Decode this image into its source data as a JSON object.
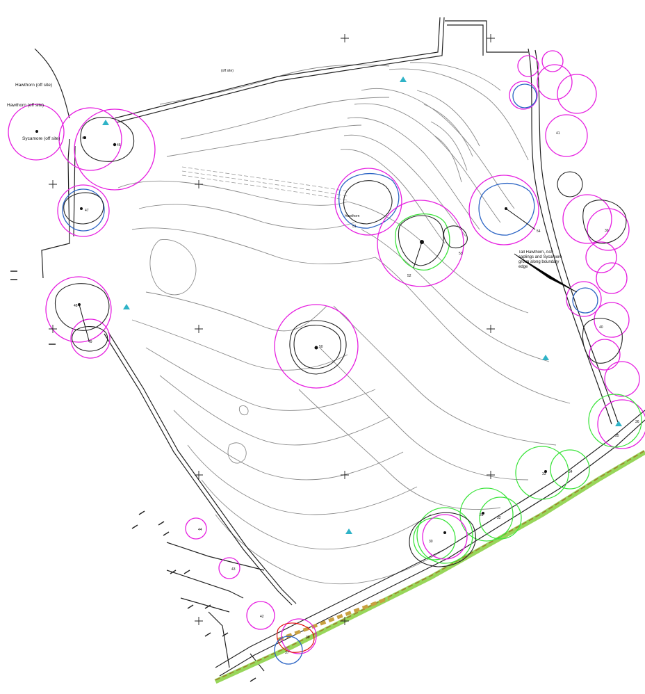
{
  "plan": {
    "labels": {
      "hawthorn_offsite_1": "Hawthorn (off site)",
      "hawthorn_offsite_2": "Hawthorn (off site)",
      "sycamore_offsite": "Sycamore (off site)",
      "offsite_top": "(off site)",
      "tall_hawthorn_note": "Tall Hawthorn, Ash saplings and Sycamore group along boundary edge",
      "hawthorn_label": "Hawthorn"
    },
    "tree_numbers": {
      "t45": "45",
      "t46": "46",
      "t47": "47",
      "t48": "48",
      "t49": "49",
      "t50": "50",
      "t51": "51",
      "t52": "52",
      "t53": "53",
      "t54": "54",
      "t37": "37",
      "t38": "38",
      "t39": "39",
      "t40": "40",
      "t41": "41",
      "t42": "42",
      "t43": "43",
      "t44": "44",
      "t33": "33",
      "t34": "34",
      "t35": "35",
      "t36": "36",
      "t30": "30",
      "t31": "31",
      "t32": "32"
    },
    "colors": {
      "root_protection": "#e61ee0",
      "new_planting": "#3ce43c",
      "group_canopy": "#2a63c4",
      "canopy_outline": "#222222",
      "contours": "#8a8a8a",
      "survey_marker": "#2fb3c7"
    }
  }
}
